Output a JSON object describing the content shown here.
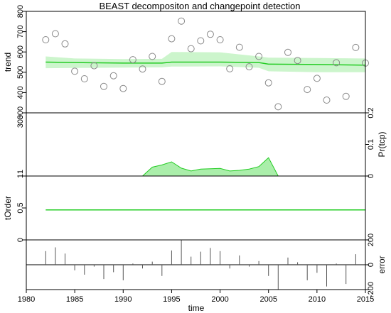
{
  "chart_data": {
    "type": "line",
    "title": "BEAST decompositon and changepoint detection",
    "xlabel": "time",
    "xlim": [
      1980,
      2015
    ],
    "xticks": [
      "1980",
      "1985",
      "1990",
      "1995",
      "2000",
      "2005",
      "2010",
      "2015"
    ],
    "colors": {
      "line": "#22cc22",
      "band": "#ccf5cc",
      "fill": "#aaeeaa",
      "point": "#888888"
    },
    "panels": [
      {
        "id": "trend",
        "ylabel": "trend",
        "ylim": [
          300,
          800
        ],
        "yticks": [
          "300",
          "400",
          "500",
          "600",
          "700",
          "800"
        ],
        "yaxis_side": "left",
        "observed": {
          "x": [
            1982,
            1983,
            1984,
            1985,
            1986,
            1987,
            1988,
            1989,
            1990,
            1991,
            1992,
            1993,
            1994,
            1995,
            1996,
            1997,
            1998,
            1999,
            2000,
            2001,
            2002,
            2003,
            2004,
            2005,
            2006,
            2007,
            2008,
            2009,
            2010,
            2011,
            2012,
            2013,
            2014,
            2015
          ],
          "y": [
            660,
            690,
            640,
            505,
            468,
            532,
            430,
            483,
            420,
            562,
            516,
            578,
            455,
            665,
            752,
            616,
            655,
            687,
            660,
            517,
            623,
            527,
            578,
            448,
            330,
            598,
            558,
            415,
            470,
            363,
            547,
            381,
            622,
            545
          ]
        },
        "trend": {
          "x": [
            1982,
            1985,
            1990,
            1994,
            1995,
            2000,
            2004,
            2005,
            2010,
            2015
          ],
          "y": [
            550,
            548,
            545,
            545,
            550,
            550,
            548,
            540,
            538,
            535
          ],
          "lower": [
            520,
            521,
            523,
            524,
            528,
            529,
            522,
            505,
            500,
            500
          ],
          "upper": [
            578,
            568,
            565,
            566,
            600,
            598,
            578,
            572,
            570,
            568
          ]
        }
      },
      {
        "id": "pr_tcp",
        "ylabel": "Pr(tcp)",
        "ylim": [
          0,
          0.2
        ],
        "yticks": [
          "0",
          "0.1",
          "0.2"
        ],
        "yaxis_side": "right",
        "left_ticks": [
          "1",
          "300"
        ],
        "probability": {
          "x": [
            1992,
            1993,
            1994,
            1995,
            1996,
            1997,
            1998,
            1999,
            2000,
            2001,
            2002,
            2003,
            2004,
            2005,
            2006
          ],
          "y": [
            0,
            0.028,
            0.035,
            0.045,
            0.025,
            0.016,
            0.022,
            0.023,
            0.024,
            0.016,
            0.018,
            0.022,
            0.03,
            0.058,
            0
          ]
        }
      },
      {
        "id": "torder",
        "ylabel": "tOrder",
        "ylim": [
          0,
          1
        ],
        "yticks": [
          "0",
          "0.5",
          "1"
        ],
        "yaxis_side": "left",
        "line": {
          "x": [
            1982,
            2015
          ],
          "y": [
            0.47,
            0.47
          ]
        }
      },
      {
        "id": "error",
        "ylabel": "error",
        "ylim": [
          -200,
          200
        ],
        "yticks": [
          "-200",
          "0",
          "200"
        ],
        "yaxis_side": "right",
        "residuals": {
          "x": [
            1982,
            1983,
            1984,
            1985,
            1986,
            1987,
            1988,
            1989,
            1990,
            1991,
            1992,
            1993,
            1994,
            1995,
            1996,
            1997,
            1998,
            1999,
            2000,
            2001,
            2002,
            2003,
            2004,
            2005,
            2006,
            2007,
            2008,
            2009,
            2010,
            2011,
            2012,
            2013,
            2014,
            2015
          ],
          "y": [
            110,
            140,
            90,
            -45,
            -80,
            -15,
            -115,
            -60,
            -125,
            10,
            -30,
            25,
            -90,
            115,
            200,
            65,
            105,
            135,
            110,
            -30,
            75,
            -15,
            30,
            -90,
            -210,
            58,
            20,
            -125,
            -65,
            -175,
            10,
            -155,
            85,
            10
          ]
        }
      }
    ]
  }
}
